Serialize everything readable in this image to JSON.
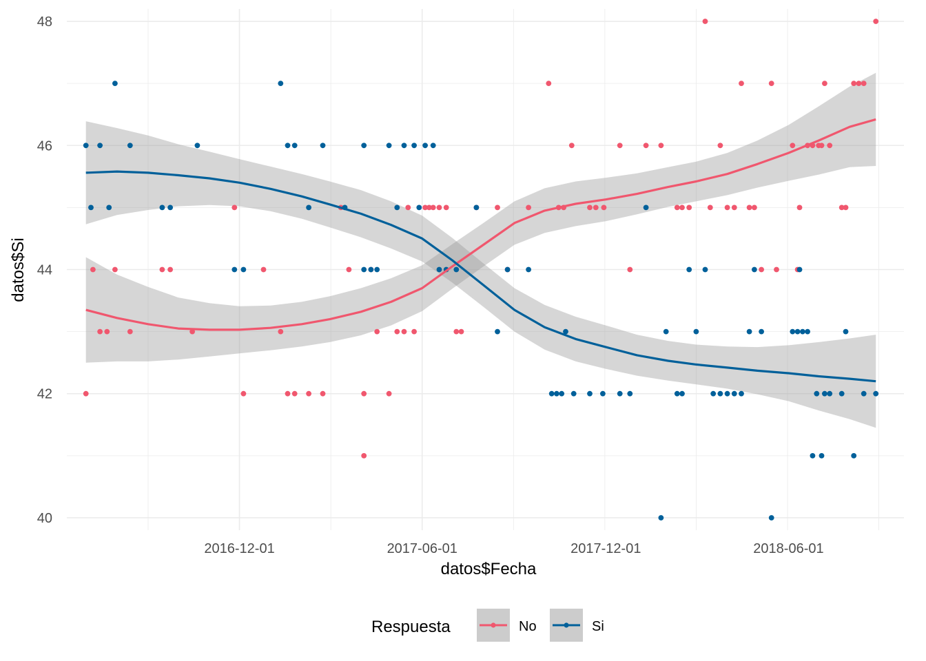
{
  "chart_data": {
    "type": "scatter",
    "xlabel": "datos$Fecha",
    "ylabel": "datos$Si",
    "x_ticks": [
      "2016-12-01",
      "2017-06-01",
      "2017-12-01",
      "2018-06-01"
    ],
    "y_ticks": [
      40,
      42,
      44,
      46,
      48
    ],
    "xlim": [
      "2016-06-12",
      "2018-09-24"
    ],
    "ylim": [
      39.8,
      48.2
    ],
    "grid": true,
    "legend": {
      "title": "Respuesta",
      "position": "bottom",
      "entries": [
        "No",
        "Si"
      ]
    },
    "series": [
      {
        "name": "No",
        "color": "#F8766D",
        "color_render": "#F0576E",
        "points": [
          [
            "2016-07-01",
            42
          ],
          [
            "2016-07-08",
            44
          ],
          [
            "2016-07-15",
            43
          ],
          [
            "2016-07-22",
            43
          ],
          [
            "2016-07-30",
            44
          ],
          [
            "2016-08-14",
            43
          ],
          [
            "2016-09-15",
            44
          ],
          [
            "2016-09-23",
            44
          ],
          [
            "2016-10-15",
            43
          ],
          [
            "2016-11-26",
            45
          ],
          [
            "2016-12-05",
            42
          ],
          [
            "2016-12-25",
            44
          ],
          [
            "2017-01-11",
            43
          ],
          [
            "2017-01-18",
            42
          ],
          [
            "2017-01-25",
            42
          ],
          [
            "2017-02-08",
            42
          ],
          [
            "2017-02-22",
            42
          ],
          [
            "2017-03-12",
            45
          ],
          [
            "2017-03-20",
            44
          ],
          [
            "2017-04-04",
            41
          ],
          [
            "2017-04-04",
            42
          ],
          [
            "2017-04-11",
            44
          ],
          [
            "2017-04-17",
            43
          ],
          [
            "2017-04-29",
            42
          ],
          [
            "2017-05-07",
            43
          ],
          [
            "2017-05-14",
            43
          ],
          [
            "2017-05-18",
            45
          ],
          [
            "2017-05-24",
            43
          ],
          [
            "2017-06-04",
            45
          ],
          [
            "2017-06-08",
            45
          ],
          [
            "2017-06-12",
            45
          ],
          [
            "2017-06-18",
            45
          ],
          [
            "2017-06-25",
            45
          ],
          [
            "2017-07-05",
            43
          ],
          [
            "2017-07-10",
            43
          ],
          [
            "2017-07-25",
            45
          ],
          [
            "2017-08-15",
            45
          ],
          [
            "2017-08-25",
            44
          ],
          [
            "2017-09-15",
            45
          ],
          [
            "2017-10-05",
            47
          ],
          [
            "2017-10-15",
            45
          ],
          [
            "2017-10-20",
            45
          ],
          [
            "2017-10-28",
            46
          ],
          [
            "2017-11-15",
            45
          ],
          [
            "2017-11-21",
            45
          ],
          [
            "2017-11-29",
            45
          ],
          [
            "2017-12-15",
            46
          ],
          [
            "2017-12-25",
            44
          ],
          [
            "2018-01-10",
            46
          ],
          [
            "2018-01-25",
            46
          ],
          [
            "2018-02-10",
            45
          ],
          [
            "2018-02-15",
            45
          ],
          [
            "2018-02-22",
            45
          ],
          [
            "2018-03-10",
            48
          ],
          [
            "2018-03-15",
            45
          ],
          [
            "2018-03-25",
            46
          ],
          [
            "2018-04-01",
            45
          ],
          [
            "2018-04-08",
            45
          ],
          [
            "2018-04-15",
            47
          ],
          [
            "2018-04-23",
            45
          ],
          [
            "2018-04-28",
            45
          ],
          [
            "2018-05-05",
            44
          ],
          [
            "2018-05-15",
            47
          ],
          [
            "2018-05-20",
            44
          ],
          [
            "2018-06-05",
            46
          ],
          [
            "2018-06-10",
            44
          ],
          [
            "2018-06-12",
            45
          ],
          [
            "2018-06-20",
            46
          ],
          [
            "2018-06-25",
            46
          ],
          [
            "2018-07-01",
            46
          ],
          [
            "2018-07-04",
            46
          ],
          [
            "2018-07-07",
            47
          ],
          [
            "2018-07-12",
            46
          ],
          [
            "2018-07-24",
            45
          ],
          [
            "2018-07-28",
            45
          ],
          [
            "2018-08-05",
            47
          ],
          [
            "2018-08-10",
            47
          ],
          [
            "2018-08-15",
            47
          ],
          [
            "2018-08-27",
            48
          ]
        ],
        "smooth": [
          [
            "2016-07-01",
            43.35
          ],
          [
            "2016-08-01",
            43.22
          ],
          [
            "2016-09-01",
            43.12
          ],
          [
            "2016-10-01",
            43.05
          ],
          [
            "2016-11-01",
            43.03
          ],
          [
            "2016-12-01",
            43.03
          ],
          [
            "2017-01-01",
            43.06
          ],
          [
            "2017-02-01",
            43.12
          ],
          [
            "2017-03-01",
            43.2
          ],
          [
            "2017-04-01",
            43.32
          ],
          [
            "2017-05-01",
            43.48
          ],
          [
            "2017-06-01",
            43.7
          ],
          [
            "2017-07-01",
            44.05
          ],
          [
            "2017-08-01",
            44.4
          ],
          [
            "2017-09-01",
            44.75
          ],
          [
            "2017-10-01",
            44.95
          ],
          [
            "2017-11-01",
            45.06
          ],
          [
            "2017-12-01",
            45.13
          ],
          [
            "2018-01-01",
            45.22
          ],
          [
            "2018-02-01",
            45.33
          ],
          [
            "2018-03-01",
            45.42
          ],
          [
            "2018-04-01",
            45.54
          ],
          [
            "2018-05-01",
            45.7
          ],
          [
            "2018-06-01",
            45.88
          ],
          [
            "2018-07-01",
            46.08
          ],
          [
            "2018-08-01",
            46.3
          ],
          [
            "2018-08-27",
            46.42
          ]
        ],
        "ci_half_width": [
          0.85,
          0.7,
          0.6,
          0.5,
          0.43,
          0.38,
          0.36,
          0.36,
          0.37,
          0.38,
          0.38,
          0.37,
          0.36,
          0.35,
          0.35,
          0.36,
          0.36,
          0.35,
          0.33,
          0.32,
          0.32,
          0.34,
          0.38,
          0.45,
          0.55,
          0.65,
          0.75
        ]
      },
      {
        "name": "Si",
        "color": "#00BFC4",
        "color_render": "#00609A",
        "points": [
          [
            "2016-07-01",
            46
          ],
          [
            "2016-07-06",
            45
          ],
          [
            "2016-07-15",
            46
          ],
          [
            "2016-07-24",
            45
          ],
          [
            "2016-07-30",
            47
          ],
          [
            "2016-08-14",
            46
          ],
          [
            "2016-09-15",
            45
          ],
          [
            "2016-09-23",
            45
          ],
          [
            "2016-10-20",
            46
          ],
          [
            "2016-11-26",
            44
          ],
          [
            "2016-12-05",
            44
          ],
          [
            "2017-01-11",
            47
          ],
          [
            "2017-01-18",
            46
          ],
          [
            "2017-01-25",
            46
          ],
          [
            "2017-02-08",
            45
          ],
          [
            "2017-02-22",
            46
          ],
          [
            "2017-03-16",
            45
          ],
          [
            "2017-04-04",
            44
          ],
          [
            "2017-04-04",
            46
          ],
          [
            "2017-04-11",
            44
          ],
          [
            "2017-04-17",
            44
          ],
          [
            "2017-04-29",
            46
          ],
          [
            "2017-05-07",
            45
          ],
          [
            "2017-05-14",
            46
          ],
          [
            "2017-05-24",
            46
          ],
          [
            "2017-05-29",
            45
          ],
          [
            "2017-06-04",
            46
          ],
          [
            "2017-06-12",
            46
          ],
          [
            "2017-06-18",
            44
          ],
          [
            "2017-06-25",
            44
          ],
          [
            "2017-07-05",
            44
          ],
          [
            "2017-07-25",
            45
          ],
          [
            "2017-08-15",
            43
          ],
          [
            "2017-08-25",
            44
          ],
          [
            "2017-09-15",
            44
          ],
          [
            "2017-10-08",
            42
          ],
          [
            "2017-10-13",
            42
          ],
          [
            "2017-10-18",
            42
          ],
          [
            "2017-10-22",
            43
          ],
          [
            "2017-10-30",
            42
          ],
          [
            "2017-11-15",
            42
          ],
          [
            "2017-11-28",
            42
          ],
          [
            "2017-12-15",
            42
          ],
          [
            "2017-12-25",
            42
          ],
          [
            "2018-01-10",
            45
          ],
          [
            "2018-01-25",
            40
          ],
          [
            "2018-01-30",
            43
          ],
          [
            "2018-02-10",
            42
          ],
          [
            "2018-02-15",
            42
          ],
          [
            "2018-02-22",
            44
          ],
          [
            "2018-03-01",
            43
          ],
          [
            "2018-03-10",
            44
          ],
          [
            "2018-03-18",
            42
          ],
          [
            "2018-03-25",
            42
          ],
          [
            "2018-04-01",
            42
          ],
          [
            "2018-04-08",
            42
          ],
          [
            "2018-04-15",
            42
          ],
          [
            "2018-04-23",
            43
          ],
          [
            "2018-04-28",
            44
          ],
          [
            "2018-05-05",
            43
          ],
          [
            "2018-05-15",
            40
          ],
          [
            "2018-06-05",
            43
          ],
          [
            "2018-06-10",
            43
          ],
          [
            "2018-06-12",
            44
          ],
          [
            "2018-06-15",
            43
          ],
          [
            "2018-06-20",
            43
          ],
          [
            "2018-06-25",
            41
          ],
          [
            "2018-06-29",
            42
          ],
          [
            "2018-07-04",
            41
          ],
          [
            "2018-07-07",
            42
          ],
          [
            "2018-07-12",
            42
          ],
          [
            "2018-07-24",
            42
          ],
          [
            "2018-07-28",
            43
          ],
          [
            "2018-08-05",
            41
          ],
          [
            "2018-08-15",
            42
          ],
          [
            "2018-08-27",
            42
          ]
        ],
        "smooth": [
          [
            "2016-07-01",
            45.56
          ],
          [
            "2016-08-01",
            45.58
          ],
          [
            "2016-09-01",
            45.56
          ],
          [
            "2016-10-01",
            45.52
          ],
          [
            "2016-11-01",
            45.47
          ],
          [
            "2016-12-01",
            45.4
          ],
          [
            "2017-01-01",
            45.3
          ],
          [
            "2017-02-01",
            45.18
          ],
          [
            "2017-03-01",
            45.05
          ],
          [
            "2017-04-01",
            44.9
          ],
          [
            "2017-05-01",
            44.72
          ],
          [
            "2017-06-01",
            44.5
          ],
          [
            "2017-07-01",
            44.15
          ],
          [
            "2017-08-01",
            43.75
          ],
          [
            "2017-09-01",
            43.35
          ],
          [
            "2017-10-01",
            43.07
          ],
          [
            "2017-11-01",
            42.88
          ],
          [
            "2017-12-01",
            42.75
          ],
          [
            "2018-01-01",
            42.62
          ],
          [
            "2018-02-01",
            42.53
          ],
          [
            "2018-03-01",
            42.47
          ],
          [
            "2018-04-01",
            42.42
          ],
          [
            "2018-05-01",
            42.37
          ],
          [
            "2018-06-01",
            42.33
          ],
          [
            "2018-07-01",
            42.28
          ],
          [
            "2018-08-01",
            42.24
          ],
          [
            "2018-08-27",
            42.2
          ]
        ],
        "ci_half_width": [
          0.83,
          0.7,
          0.6,
          0.5,
          0.43,
          0.38,
          0.36,
          0.36,
          0.37,
          0.38,
          0.38,
          0.37,
          0.36,
          0.35,
          0.35,
          0.36,
          0.36,
          0.35,
          0.33,
          0.32,
          0.32,
          0.34,
          0.38,
          0.45,
          0.55,
          0.65,
          0.75
        ]
      }
    ]
  }
}
